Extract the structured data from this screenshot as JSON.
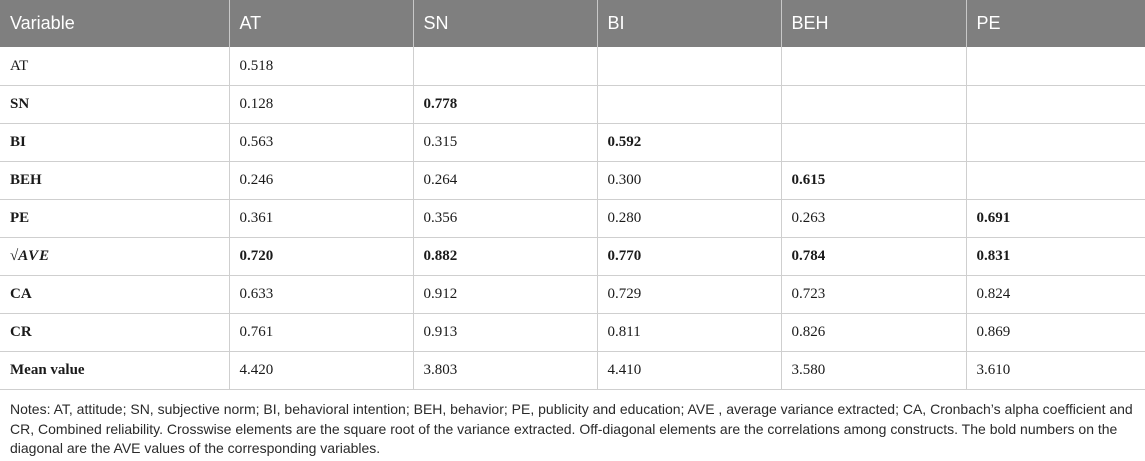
{
  "table": {
    "headers": [
      "Variable",
      "AT",
      "SN",
      "BI",
      "BEH",
      "PE"
    ],
    "rows": [
      {
        "label": "AT",
        "cells": [
          "0.518",
          "",
          "",
          "",
          ""
        ]
      },
      {
        "label": "SN",
        "cells": [
          "0.128",
          "0.778",
          "",
          "",
          ""
        ]
      },
      {
        "label": "BI",
        "cells": [
          "0.563",
          "0.315",
          "0.592",
          "",
          ""
        ]
      },
      {
        "label": "BEH",
        "cells": [
          "0.246",
          "0.264",
          "0.300",
          "0.615",
          ""
        ]
      },
      {
        "label": "PE",
        "cells": [
          "0.361",
          "0.356",
          "0.280",
          "0.263",
          "0.691"
        ]
      },
      {
        "label_radical": "√",
        "label": "AVE",
        "cells": [
          "0.720",
          "0.882",
          "0.770",
          "0.784",
          "0.831"
        ]
      },
      {
        "label": "CA",
        "cells": [
          "0.633",
          "0.912",
          "0.729",
          "0.723",
          "0.824"
        ]
      },
      {
        "label": "CR",
        "cells": [
          "0.761",
          "0.913",
          "0.811",
          "0.826",
          "0.869"
        ]
      },
      {
        "label": "Mean value",
        "cells": [
          "4.420",
          "3.803",
          "4.410",
          "3.580",
          "3.610"
        ]
      }
    ]
  },
  "notes": "Notes: AT, attitude; SN, subjective norm; BI, behavioral intention; BEH, behavior; PE, publicity and education; AVE , average variance extracted; CA, Cronbach’s alpha coefficient and CR, Combined reliability. Crosswise elements are the square root of the variance extracted. Off-diagonal elements are the correlations among constructs. The bold numbers on the diagonal are the AVE values of the corresponding variables."
}
